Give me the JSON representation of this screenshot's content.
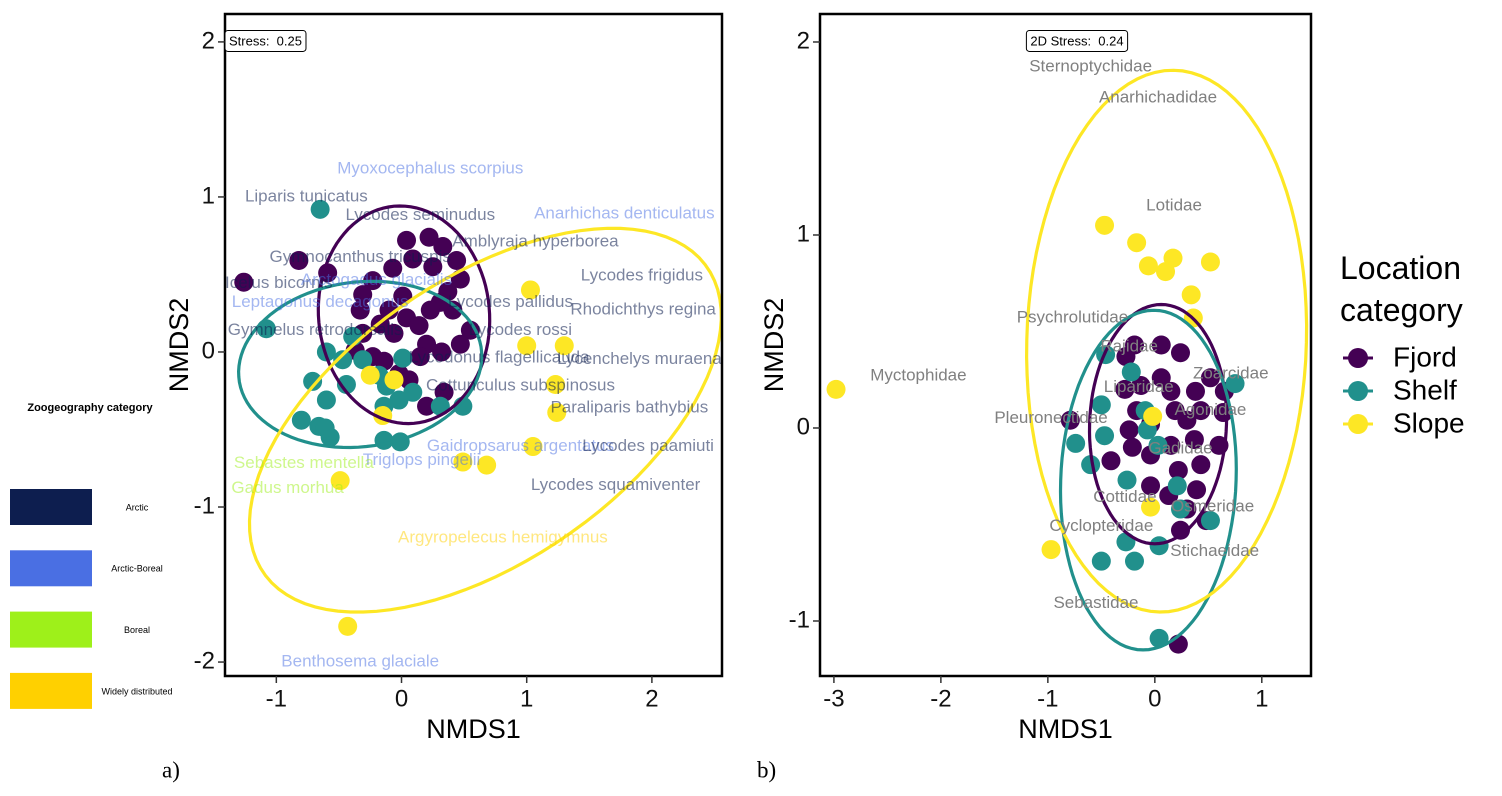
{
  "chart_data": [
    {
      "type": "scatter",
      "panel_label": "a)",
      "xlabel": "NMDS1",
      "ylabel": "NMDS2",
      "annotation": "Stress:  0.25",
      "xlim": [
        -1.41,
        2.56
      ],
      "ylim": [
        -2.09,
        2.18
      ],
      "xticks": [
        -1,
        0,
        1,
        2
      ],
      "yticks": [
        -2,
        -1,
        0,
        1,
        2
      ],
      "series": [
        {
          "color": "#440154",
          "x": [
            -1.26,
            -0.82,
            -0.59,
            -0.31,
            -0.23,
            -0.07,
            0.04,
            0.09,
            0.22,
            0.33,
            0.25,
            0.44,
            0.47,
            0.37,
            0.31,
            0.01,
            -0.1,
            -0.17,
            -0.31,
            -0.37,
            -0.23,
            -0.06,
            0.04,
            0.14,
            0.2,
            0.23,
            0.41,
            0.55,
            0.15,
            -0.02,
            0.06,
            0.2,
            0.34,
            -0.14,
            -0.33,
            0.32,
            0.47
          ],
          "y": [
            0.45,
            0.59,
            0.51,
            0.37,
            0.46,
            0.54,
            0.72,
            0.6,
            0.74,
            0.68,
            0.55,
            0.59,
            0.47,
            0.39,
            0.32,
            0.36,
            0.27,
            0.18,
            0.12,
            0.01,
            -0.03,
            0.12,
            0.22,
            0.17,
            0.05,
            0.27,
            0.27,
            0.14,
            -0.03,
            -0.14,
            -0.18,
            -0.35,
            -0.26,
            -0.06,
            0.27,
            0.0,
            0.05
          ],
          "ellipse": {
            "center": [
              0.02,
              0.24
            ],
            "axis1": [
              0.68,
              0.05
            ],
            "axis2": [
              -0.08,
              0.7
            ]
          }
        },
        {
          "color": "#21908c",
          "x": [
            -0.65,
            -1.08,
            -0.6,
            -0.71,
            -0.47,
            -0.44,
            -0.6,
            -0.8,
            -0.66,
            -0.57,
            -0.61,
            -0.31,
            -0.12,
            -0.02,
            0.09,
            -0.14,
            -0.01,
            -0.14,
            0.31,
            0.49,
            -0.18,
            -0.39,
            0.01
          ],
          "y": [
            0.92,
            0.15,
            0.0,
            -0.19,
            -0.05,
            -0.21,
            -0.31,
            -0.44,
            -0.48,
            -0.55,
            -0.49,
            -0.05,
            -0.22,
            -0.31,
            -0.26,
            -0.57,
            -0.58,
            -0.35,
            -0.35,
            -0.35,
            -0.15,
            0.1,
            -0.04
          ],
          "ellipse": {
            "center": [
              -0.33,
              -0.08
            ],
            "axis1": [
              0.97,
              0.08
            ],
            "axis2": [
              -0.05,
              0.53
            ]
          }
        },
        {
          "color": "#fde725",
          "x": [
            -0.25,
            1.03,
            1.0,
            1.3,
            1.23,
            1.24,
            1.05,
            0.68,
            0.49,
            -0.49,
            -0.43,
            -0.15,
            -0.06
          ],
          "y": [
            -0.15,
            0.4,
            0.04,
            0.04,
            -0.21,
            -0.39,
            -0.61,
            -0.73,
            -0.71,
            -0.83,
            -1.77,
            -0.41,
            -0.18
          ],
          "ellipse": {
            "center": [
              0.67,
              -0.44
            ],
            "axis1": [
              1.83,
              0.9
            ],
            "axis2": [
              -0.45,
              0.85
            ]
          }
        }
      ],
      "labels": [
        {
          "text": "Myoxocephalus scorpius",
          "x": 0.23,
          "y": 1.18,
          "group": 1
        },
        {
          "text": "Liparis tunicatus",
          "x": -0.76,
          "y": 1.0,
          "group": 0
        },
        {
          "text": "Lycodes seminudus",
          "x": 0.15,
          "y": 0.88,
          "group": 0
        },
        {
          "text": "Anarhichas denticulatus",
          "x": 1.78,
          "y": 0.89,
          "group": 1
        },
        {
          "text": "Amblyraja hyperborea",
          "x": 1.07,
          "y": 0.71,
          "group": 0
        },
        {
          "text": "Gymnocanthus tricuspis",
          "x": -0.33,
          "y": 0.61,
          "group": 0
        },
        {
          "text": "Lycodes frigidus",
          "x": 1.92,
          "y": 0.49,
          "group": 0
        },
        {
          "text": "Icelus bicornis",
          "x": -0.98,
          "y": 0.44,
          "group": 0
        },
        {
          "text": "Arctogadus glacialis",
          "x": -0.2,
          "y": 0.46,
          "group": 1
        },
        {
          "text": "Leptagonus decagonus",
          "x": -0.65,
          "y": 0.32,
          "group": 1
        },
        {
          "text": "Lycodes pallidus",
          "x": 0.87,
          "y": 0.32,
          "group": 0
        },
        {
          "text": "Rhodichthys regina",
          "x": 1.93,
          "y": 0.27,
          "group": 0
        },
        {
          "text": "Gymnelus retrodorsalis",
          "x": -0.69,
          "y": 0.14,
          "group": 0
        },
        {
          "text": "Lycodes rossi",
          "x": 0.95,
          "y": 0.14,
          "group": 0
        },
        {
          "text": "Lycodonus flagellicauda",
          "x": 0.78,
          "y": -0.04,
          "group": 0
        },
        {
          "text": "Lycenchelys muraena",
          "x": 1.9,
          "y": -0.05,
          "group": 0
        },
        {
          "text": "Cottunculus subspinosus",
          "x": 0.95,
          "y": -0.22,
          "group": 0
        },
        {
          "text": "Paraliparis bathybius",
          "x": 1.82,
          "y": -0.36,
          "group": 0
        },
        {
          "text": "Gaidropsarus argentatus",
          "x": 0.95,
          "y": -0.61,
          "group": 1
        },
        {
          "text": "Lycodes paamiuti",
          "x": 1.97,
          "y": -0.61,
          "group": 0
        },
        {
          "text": "Triglops pingelii",
          "x": 0.16,
          "y": -0.7,
          "group": 1
        },
        {
          "text": "Sebastes mentella",
          "x": -0.78,
          "y": -0.72,
          "group": 2
        },
        {
          "text": "Gadus morhua",
          "x": -0.91,
          "y": -0.88,
          "group": 2
        },
        {
          "text": "Lycodes squamiventer",
          "x": 1.71,
          "y": -0.86,
          "group": 0
        },
        {
          "text": "Argyropelecus hemigymnus",
          "x": 0.81,
          "y": -1.2,
          "group": 3
        },
        {
          "text": "Benthosema glaciale",
          "x": -0.33,
          "y": -2.0,
          "group": 1
        }
      ],
      "label_legend": {
        "title": "Zoogeography category",
        "categories": [
          "Arctic",
          "Arctic-Boreal",
          "Boreal",
          "Widely distributed"
        ],
        "colors": [
          "#0d1e4f",
          "#4a6fe3",
          "#9ef01a",
          "#ffd000"
        ]
      }
    },
    {
      "type": "scatter",
      "panel_label": "b)",
      "xlabel": "NMDS1",
      "ylabel": "NMDS2",
      "annotation": "2D Stress:  0.24",
      "xlim": [
        -3.13,
        1.46
      ],
      "ylim": [
        -1.285,
        2.145
      ],
      "xticks": [
        -3,
        -2,
        -1,
        0,
        1
      ],
      "yticks": [
        -1,
        0,
        1,
        2
      ],
      "legend_title": "Location category",
      "series": [
        {
          "name": "Fjord",
          "color": "#440154",
          "x": [
            -0.79,
            -0.41,
            -0.28,
            -0.17,
            -0.19,
            0.06,
            0.24,
            0.06,
            0.15,
            0.38,
            0.52,
            0.65,
            0.64,
            0.43,
            0.3,
            0.19,
            -0.04,
            -0.24,
            -0.21,
            -0.04,
            0.15,
            0.37,
            0.6,
            0.43,
            0.22,
            -0.04,
            0.13,
            0.39,
            0.3,
            0.48,
            0.24,
            -0.13,
            -0.27,
            0.22
          ],
          "y": [
            0.04,
            -0.17,
            0.2,
            0.09,
            0.43,
            0.43,
            0.39,
            0.26,
            0.19,
            0.19,
            0.26,
            0.19,
            0.08,
            0.09,
            0.04,
            0.09,
            0.02,
            -0.01,
            -0.1,
            -0.14,
            -0.09,
            -0.06,
            -0.09,
            -0.19,
            -0.22,
            -0.3,
            -0.35,
            -0.32,
            -0.42,
            -0.48,
            -0.53,
            0.22,
            0.37,
            -1.12
          ],
          "ellipse": {
            "center": [
              0.03,
              0.02
            ],
            "axis1": [
              0.64,
              0.0
            ],
            "axis2": [
              0.03,
              0.62
            ]
          }
        },
        {
          "name": "Shelf",
          "color": "#21908c",
          "x": [
            -0.46,
            -0.22,
            -0.5,
            -0.74,
            -0.47,
            -0.6,
            -0.26,
            -0.09,
            -0.07,
            0.03,
            0.21,
            0.24,
            0.52,
            -0.27,
            0.04,
            -0.5,
            -0.19,
            0.04,
            0.75
          ],
          "y": [
            0.38,
            0.29,
            0.12,
            -0.08,
            -0.04,
            -0.19,
            -0.27,
            0.09,
            -0.01,
            -0.09,
            -0.3,
            -0.42,
            -0.48,
            -0.59,
            -0.61,
            -0.69,
            -0.69,
            -1.09,
            0.23
          ],
          "ellipse": {
            "center": [
              -0.06,
              -0.27
            ],
            "axis1": [
              0.82,
              0.0
            ],
            "axis2": [
              0.05,
              0.88
            ]
          }
        },
        {
          "name": "Slope",
          "color": "#fde725",
          "x": [
            -2.98,
            -0.47,
            -0.17,
            -0.06,
            0.1,
            0.17,
            0.52,
            0.34,
            0.36,
            -0.97,
            -0.04,
            -0.02
          ],
          "y": [
            0.2,
            1.05,
            0.96,
            0.84,
            0.81,
            0.88,
            0.86,
            0.69,
            0.57,
            -0.63,
            -0.41,
            0.06
          ],
          "ellipse": {
            "center": [
              0.11,
              0.45
            ],
            "axis1": [
              1.3,
              -0.1
            ],
            "axis2": [
              0.15,
              1.4
            ]
          }
        }
      ],
      "label_color": "#808080",
      "labels": [
        {
          "text": "Sternoptychidae",
          "x": -0.6,
          "y": 1.87
        },
        {
          "text": "Anarhichadidae",
          "x": 0.03,
          "y": 1.71
        },
        {
          "text": "Lotidae",
          "x": 0.18,
          "y": 1.15
        },
        {
          "text": "Psychrolutidae",
          "x": -0.77,
          "y": 0.57
        },
        {
          "text": "Myctophidae",
          "x": -2.21,
          "y": 0.27
        },
        {
          "text": "Rajidae",
          "x": -0.24,
          "y": 0.42
        },
        {
          "text": "Zoarcidae",
          "x": 0.71,
          "y": 0.28
        },
        {
          "text": "Liparidae",
          "x": -0.15,
          "y": 0.21
        },
        {
          "text": "Agonidae",
          "x": 0.52,
          "y": 0.09
        },
        {
          "text": "Pleuronectidae",
          "x": -0.97,
          "y": 0.05
        },
        {
          "text": "Gadidae",
          "x": 0.24,
          "y": -0.11
        },
        {
          "text": "Cottidae",
          "x": -0.28,
          "y": -0.36
        },
        {
          "text": "Osmeridae",
          "x": 0.54,
          "y": -0.41
        },
        {
          "text": "Cyclopteridae",
          "x": -0.5,
          "y": -0.51
        },
        {
          "text": "Stichaeidae",
          "x": 0.56,
          "y": -0.64
        },
        {
          "text": "Sebastidae",
          "x": -0.55,
          "y": -0.91
        }
      ]
    }
  ]
}
